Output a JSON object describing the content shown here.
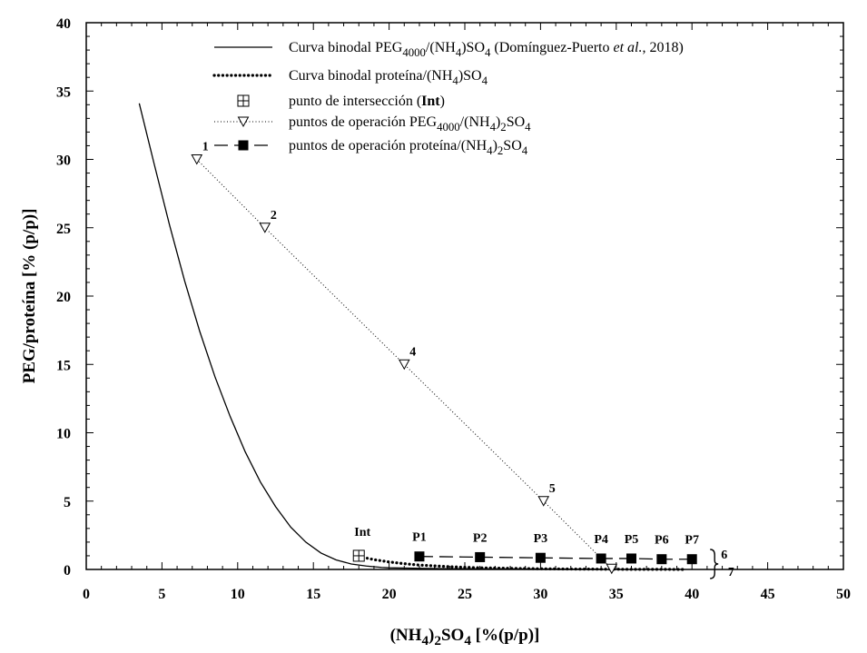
{
  "chart_data": {
    "type": "scatter",
    "xlabel": "(NH4)2SO4 [%(p/p)]",
    "ylabel": "PEG/proteína [% (p/p)]",
    "xlim": [
      0,
      50
    ],
    "ylim": [
      0,
      40
    ],
    "x_ticks": [
      "0",
      "5",
      "10",
      "15",
      "20",
      "25",
      "30",
      "35",
      "40",
      "45",
      "50"
    ],
    "y_ticks": [
      "0",
      "5",
      "10",
      "15",
      "20",
      "25",
      "30",
      "35",
      "40"
    ],
    "series": [
      {
        "name": "Curva binodal PEG4000/(NH4)SO4 (Domínguez-Puerto et al., 2018)",
        "style": "solid",
        "x": [
          3.5,
          4.5,
          5.5,
          6.5,
          7.5,
          8.5,
          9.5,
          10.5,
          11.5,
          12.5,
          13.5,
          14.5,
          15.5,
          16.5,
          17.5,
          18.5,
          19.5,
          20,
          22,
          24,
          26,
          28,
          30,
          32,
          34
        ],
        "y": [
          34.1,
          29.6,
          25.2,
          21.1,
          17.4,
          14.1,
          11.2,
          8.6,
          6.4,
          4.6,
          3.1,
          2.0,
          1.2,
          0.7,
          0.4,
          0.25,
          0.15,
          0.12,
          0.08,
          0.06,
          0.05,
          0.04,
          0.03,
          0.02,
          0.02
        ]
      },
      {
        "name": "Curva binodal proteína/(NH4)SO4",
        "style": "dotted-thick",
        "x": [
          18,
          19,
          20,
          21,
          22,
          24,
          26,
          28,
          30,
          32,
          34,
          36,
          38,
          39.5
        ],
        "y": [
          0.95,
          0.72,
          0.55,
          0.42,
          0.32,
          0.2,
          0.12,
          0.08,
          0.05,
          0.03,
          0.02,
          0.01,
          0.01,
          0.0
        ]
      },
      {
        "name": "punto de intersección (Int)",
        "style": "marker-boxplus",
        "points": [
          {
            "label": "Int",
            "x": 18,
            "y": 1.0
          }
        ]
      },
      {
        "name": "puntos de operación PEG4000/(NH4)2SO4",
        "style": "dotted-triangle",
        "points": [
          {
            "label": "1",
            "x": 7.3,
            "y": 30.0
          },
          {
            "label": "2",
            "x": 11.8,
            "y": 25.0
          },
          {
            "label": "4",
            "x": 21.0,
            "y": 15.0
          },
          {
            "label": "5",
            "x": 30.2,
            "y": 5.0
          },
          {
            "label": "7",
            "x": 34.7,
            "y": 0.05
          }
        ]
      },
      {
        "name": "puntos de operación proteína/(NH4)2SO4",
        "style": "dashed-square",
        "points": [
          {
            "label": "P1",
            "x": 22,
            "y": 0.95
          },
          {
            "label": "P2",
            "x": 26,
            "y": 0.9
          },
          {
            "label": "P3",
            "x": 30,
            "y": 0.85
          },
          {
            "label": "P4",
            "x": 34,
            "y": 0.8
          },
          {
            "label": "P5",
            "x": 36,
            "y": 0.8
          },
          {
            "label": "P6",
            "x": 38,
            "y": 0.75
          },
          {
            "label": "P7",
            "x": 40,
            "y": 0.75
          }
        ]
      }
    ],
    "brace_labels": [
      "6",
      "7"
    ]
  },
  "legend": [
    {
      "key": "binodal_peg",
      "parts": [
        [
          "Curva binodal PEG",
          "n"
        ],
        [
          "4000",
          "sub"
        ],
        [
          "/(NH",
          "n"
        ],
        [
          "4",
          "sub"
        ],
        [
          ")SO",
          "n"
        ],
        [
          "4",
          "sub"
        ],
        [
          " (Domínguez-Puerto ",
          "n"
        ],
        [
          "et al.",
          "i"
        ],
        [
          ", 2018)",
          "n"
        ]
      ]
    },
    {
      "key": "binodal_prot",
      "parts": [
        [
          "Curva binodal proteína/(NH",
          "n"
        ],
        [
          "4",
          "sub"
        ],
        [
          ")SO",
          "n"
        ],
        [
          "4",
          "sub"
        ]
      ]
    },
    {
      "key": "int",
      "parts": [
        [
          "punto de intersección (",
          "n"
        ],
        [
          "Int",
          "b"
        ],
        [
          ")",
          "n"
        ]
      ]
    },
    {
      "key": "op_peg",
      "parts": [
        [
          "puntos de operación PEG",
          "n"
        ],
        [
          "4000",
          "sub"
        ],
        [
          "/(NH",
          "n"
        ],
        [
          "4",
          "sub"
        ],
        [
          ")",
          "n"
        ],
        [
          "2",
          "sub"
        ],
        [
          "SO",
          "n"
        ],
        [
          "4",
          "sub"
        ]
      ]
    },
    {
      "key": "op_prot",
      "parts": [
        [
          "puntos de operación proteína/(NH",
          "n"
        ],
        [
          "4",
          "sub"
        ],
        [
          ")",
          "n"
        ],
        [
          "2",
          "sub"
        ],
        [
          "SO",
          "n"
        ],
        [
          "4",
          "sub"
        ]
      ]
    }
  ],
  "xaxis_title_parts": [
    [
      "(NH",
      "b"
    ],
    [
      "4",
      "bsub"
    ],
    [
      ")",
      "b"
    ],
    [
      "2",
      "bsub"
    ],
    [
      "SO",
      "b"
    ],
    [
      "4",
      "bsub"
    ],
    [
      " [%(p/p)]",
      "b"
    ]
  ]
}
